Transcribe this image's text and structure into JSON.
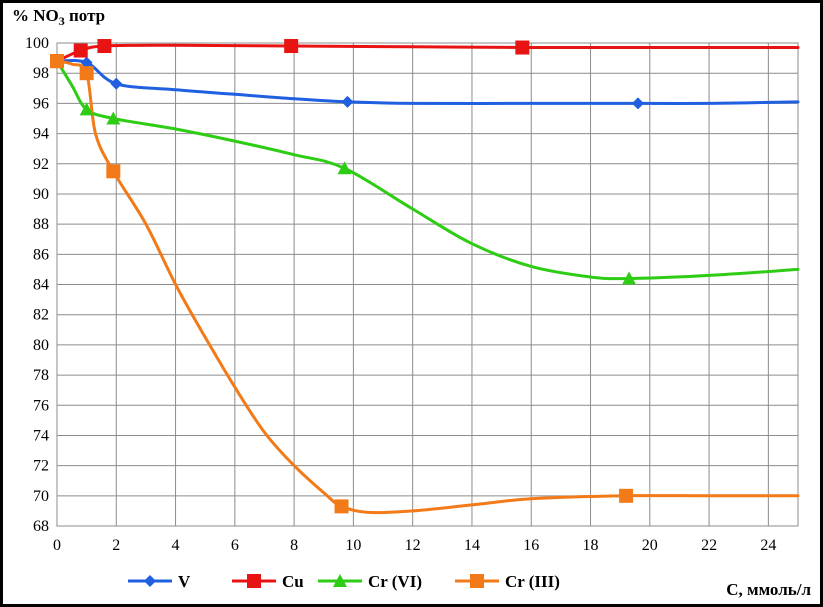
{
  "chart_data": {
    "type": "line",
    "ylabel_prefix": "% NO",
    "ylabel_sub": "3",
    "ylabel_suffix": " потр",
    "xlabel": "C, ммоль/л",
    "xlim": [
      0,
      25
    ],
    "ylim": [
      68,
      100
    ],
    "x_ticks": [
      0,
      2,
      4,
      6,
      8,
      10,
      12,
      14,
      16,
      18,
      20,
      22,
      24
    ],
    "y_ticks": [
      68,
      70,
      72,
      74,
      76,
      78,
      80,
      82,
      84,
      86,
      88,
      90,
      92,
      94,
      96,
      98,
      100
    ],
    "grid": true,
    "legend_position": "bottom",
    "series": [
      {
        "name": "V",
        "color": "#1f5fe0",
        "marker": "diamond",
        "points": [
          [
            0,
            98.8
          ],
          [
            1,
            98.7
          ],
          [
            2,
            97.3
          ],
          [
            9.8,
            96.1
          ],
          [
            19.6,
            96.0
          ]
        ],
        "curve": [
          [
            0,
            98.8
          ],
          [
            1,
            98.7
          ],
          [
            2,
            97.3
          ],
          [
            4,
            96.9
          ],
          [
            6,
            96.6
          ],
          [
            8,
            96.3
          ],
          [
            9.8,
            96.1
          ],
          [
            12,
            96.0
          ],
          [
            16,
            96.0
          ],
          [
            19.6,
            96.0
          ],
          [
            22,
            96.0
          ],
          [
            25,
            96.1
          ]
        ]
      },
      {
        "name": "Cu",
        "color": "#e81313",
        "marker": "square",
        "points": [
          [
            0,
            98.8
          ],
          [
            0.8,
            99.5
          ],
          [
            1.6,
            99.8
          ],
          [
            7.9,
            99.8
          ],
          [
            15.7,
            99.7
          ]
        ],
        "curve": [
          [
            0,
            98.8
          ],
          [
            0.8,
            99.5
          ],
          [
            1.6,
            99.8
          ],
          [
            4,
            99.85
          ],
          [
            7.9,
            99.8
          ],
          [
            12,
            99.75
          ],
          [
            15.7,
            99.7
          ],
          [
            20,
            99.7
          ],
          [
            25,
            99.7
          ]
        ]
      },
      {
        "name": "Cr (VI)",
        "color": "#2ecc14",
        "marker": "triangle",
        "points": [
          [
            0,
            98.8
          ],
          [
            1,
            95.6
          ],
          [
            1.9,
            95.0
          ],
          [
            9.7,
            91.7
          ],
          [
            19.3,
            84.4
          ]
        ],
        "curve": [
          [
            0,
            98.8
          ],
          [
            0.5,
            97.2
          ],
          [
            1,
            95.6
          ],
          [
            1.9,
            95.0
          ],
          [
            4,
            94.3
          ],
          [
            6,
            93.5
          ],
          [
            8,
            92.6
          ],
          [
            9.7,
            91.7
          ],
          [
            12,
            89.0
          ],
          [
            14,
            86.7
          ],
          [
            16,
            85.2
          ],
          [
            18,
            84.5
          ],
          [
            19.3,
            84.4
          ],
          [
            22,
            84.6
          ],
          [
            25,
            85.0
          ]
        ]
      },
      {
        "name": "Cr (III)",
        "color": "#f37a18",
        "marker": "square",
        "points": [
          [
            0,
            98.8
          ],
          [
            1,
            98.0
          ],
          [
            1.9,
            91.5
          ],
          [
            9.6,
            69.3
          ],
          [
            19.2,
            70.0
          ]
        ],
        "curve": [
          [
            0,
            98.8
          ],
          [
            0.5,
            98.6
          ],
          [
            1,
            98.0
          ],
          [
            1.3,
            94.0
          ],
          [
            1.9,
            91.5
          ],
          [
            3,
            88.0
          ],
          [
            4,
            84.0
          ],
          [
            5,
            80.5
          ],
          [
            6,
            77.2
          ],
          [
            7,
            74.2
          ],
          [
            8,
            72.0
          ],
          [
            9,
            70.2
          ],
          [
            9.6,
            69.3
          ],
          [
            10.5,
            68.9
          ],
          [
            12,
            69.0
          ],
          [
            14,
            69.4
          ],
          [
            16,
            69.8
          ],
          [
            19.2,
            70.0
          ],
          [
            22,
            70.0
          ],
          [
            25,
            70.0
          ]
        ]
      }
    ]
  }
}
